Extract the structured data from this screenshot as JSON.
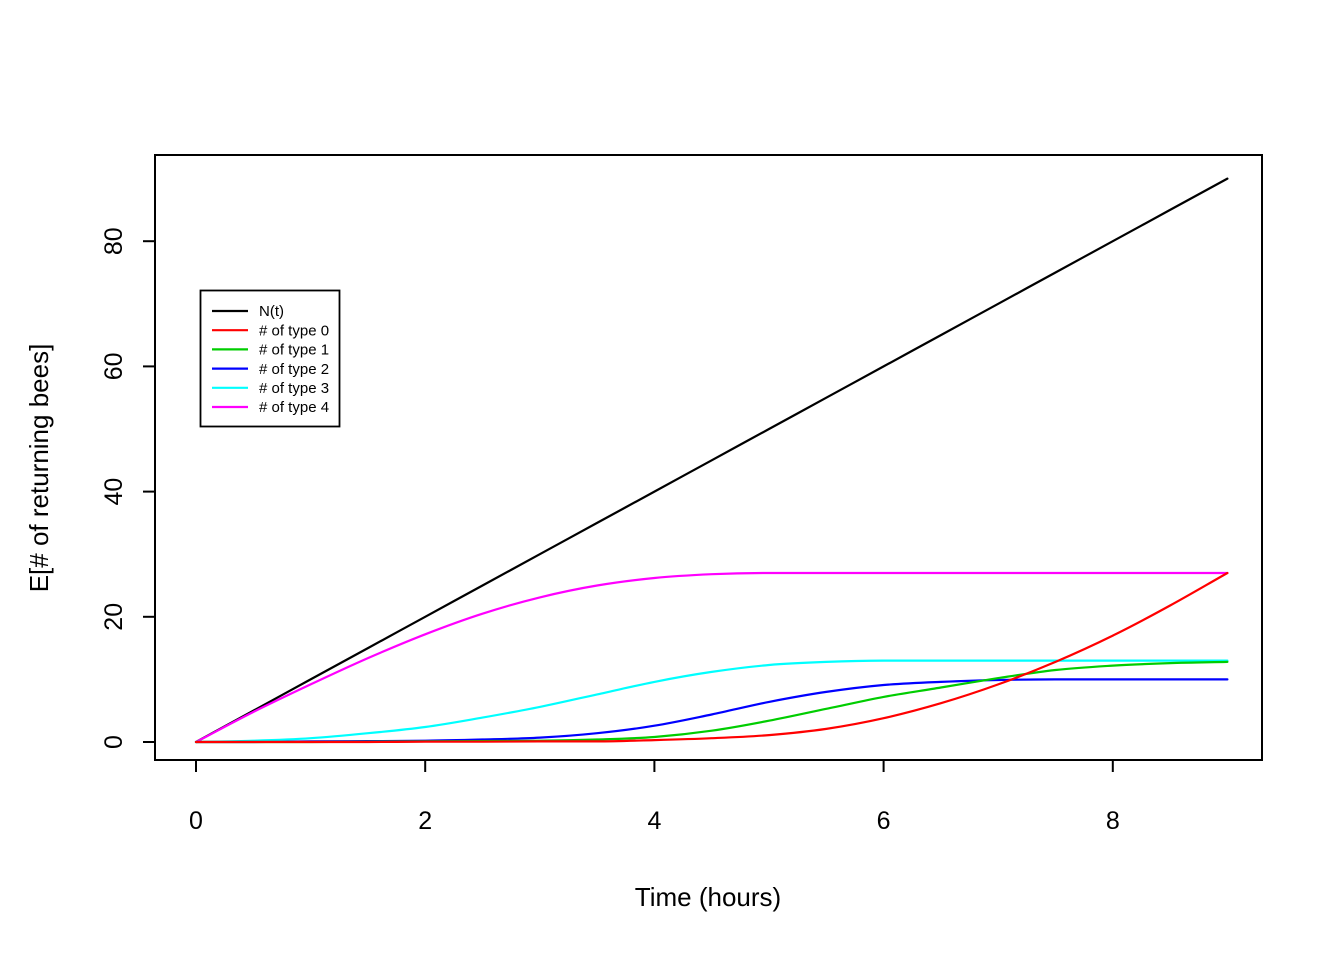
{
  "figure": {
    "background": "#FFFFFF",
    "foreground": "#000000"
  },
  "chart_data": {
    "type": "line",
    "title": "",
    "xlabel": "Time (hours)",
    "ylabel": "E[# of returning bees]",
    "xlim": [
      0,
      9
    ],
    "ylim": [
      0,
      90
    ],
    "x_ticks": [
      0,
      2,
      4,
      6,
      8
    ],
    "y_ticks": [
      0,
      20,
      40,
      60,
      80
    ],
    "grid": false,
    "x": [
      0,
      0.5,
      1,
      1.5,
      2,
      2.5,
      3,
      3.5,
      4,
      4.5,
      5,
      5.5,
      6,
      6.5,
      7,
      7.5,
      8,
      8.5,
      9
    ],
    "series": [
      {
        "name": "N(t)",
        "color": "#000000",
        "values": [
          0,
          5,
          10,
          15,
          20,
          25,
          30,
          35,
          40,
          45,
          50,
          55,
          60,
          65,
          70,
          75,
          80,
          85,
          90
        ]
      },
      {
        "name": "# of type 0",
        "color": "#FF0000",
        "values": [
          0,
          0,
          0,
          0,
          0.05,
          0.05,
          0.1,
          0.1,
          0.3,
          0.6,
          1.1,
          2.1,
          3.8,
          6.2,
          9.2,
          12.8,
          17,
          21.8,
          27
        ]
      },
      {
        "name": "# of type 1",
        "color": "#00CD00",
        "values": [
          0,
          0,
          0,
          0.05,
          0.1,
          0.15,
          0.2,
          0.4,
          0.8,
          1.8,
          3.4,
          5.3,
          7.2,
          8.7,
          10.2,
          11.5,
          12.2,
          12.6,
          12.8
        ]
      },
      {
        "name": "# of type 2",
        "color": "#0000FF",
        "values": [
          0,
          0,
          0.1,
          0.15,
          0.2,
          0.4,
          0.7,
          1.4,
          2.6,
          4.4,
          6.4,
          8,
          9.1,
          9.6,
          9.9,
          10,
          10,
          10,
          10
        ]
      },
      {
        "name": "# of type 3",
        "color": "#00FFFF",
        "values": [
          0,
          0.2,
          0.6,
          1.4,
          2.4,
          3.9,
          5.6,
          7.6,
          9.6,
          11.2,
          12.3,
          12.8,
          13,
          13,
          13,
          13,
          13,
          13,
          13
        ]
      },
      {
        "name": "# of type 4",
        "color": "#FF00FF",
        "values": [
          0,
          4.8,
          9.2,
          13.4,
          17.2,
          20.5,
          23.1,
          25,
          26.2,
          26.8,
          27,
          27,
          27,
          27,
          27,
          27,
          27,
          27,
          27
        ]
      }
    ],
    "draw_order": [
      "N(t)",
      "# of type 4",
      "# of type 3",
      "# of type 2",
      "# of type 1",
      "# of type 0"
    ],
    "legend": {
      "position": "top-left-inset",
      "entries": [
        "N(t)",
        "# of type 0",
        "# of type 1",
        "# of type 2",
        "# of type 3",
        "# of type 4"
      ]
    }
  }
}
